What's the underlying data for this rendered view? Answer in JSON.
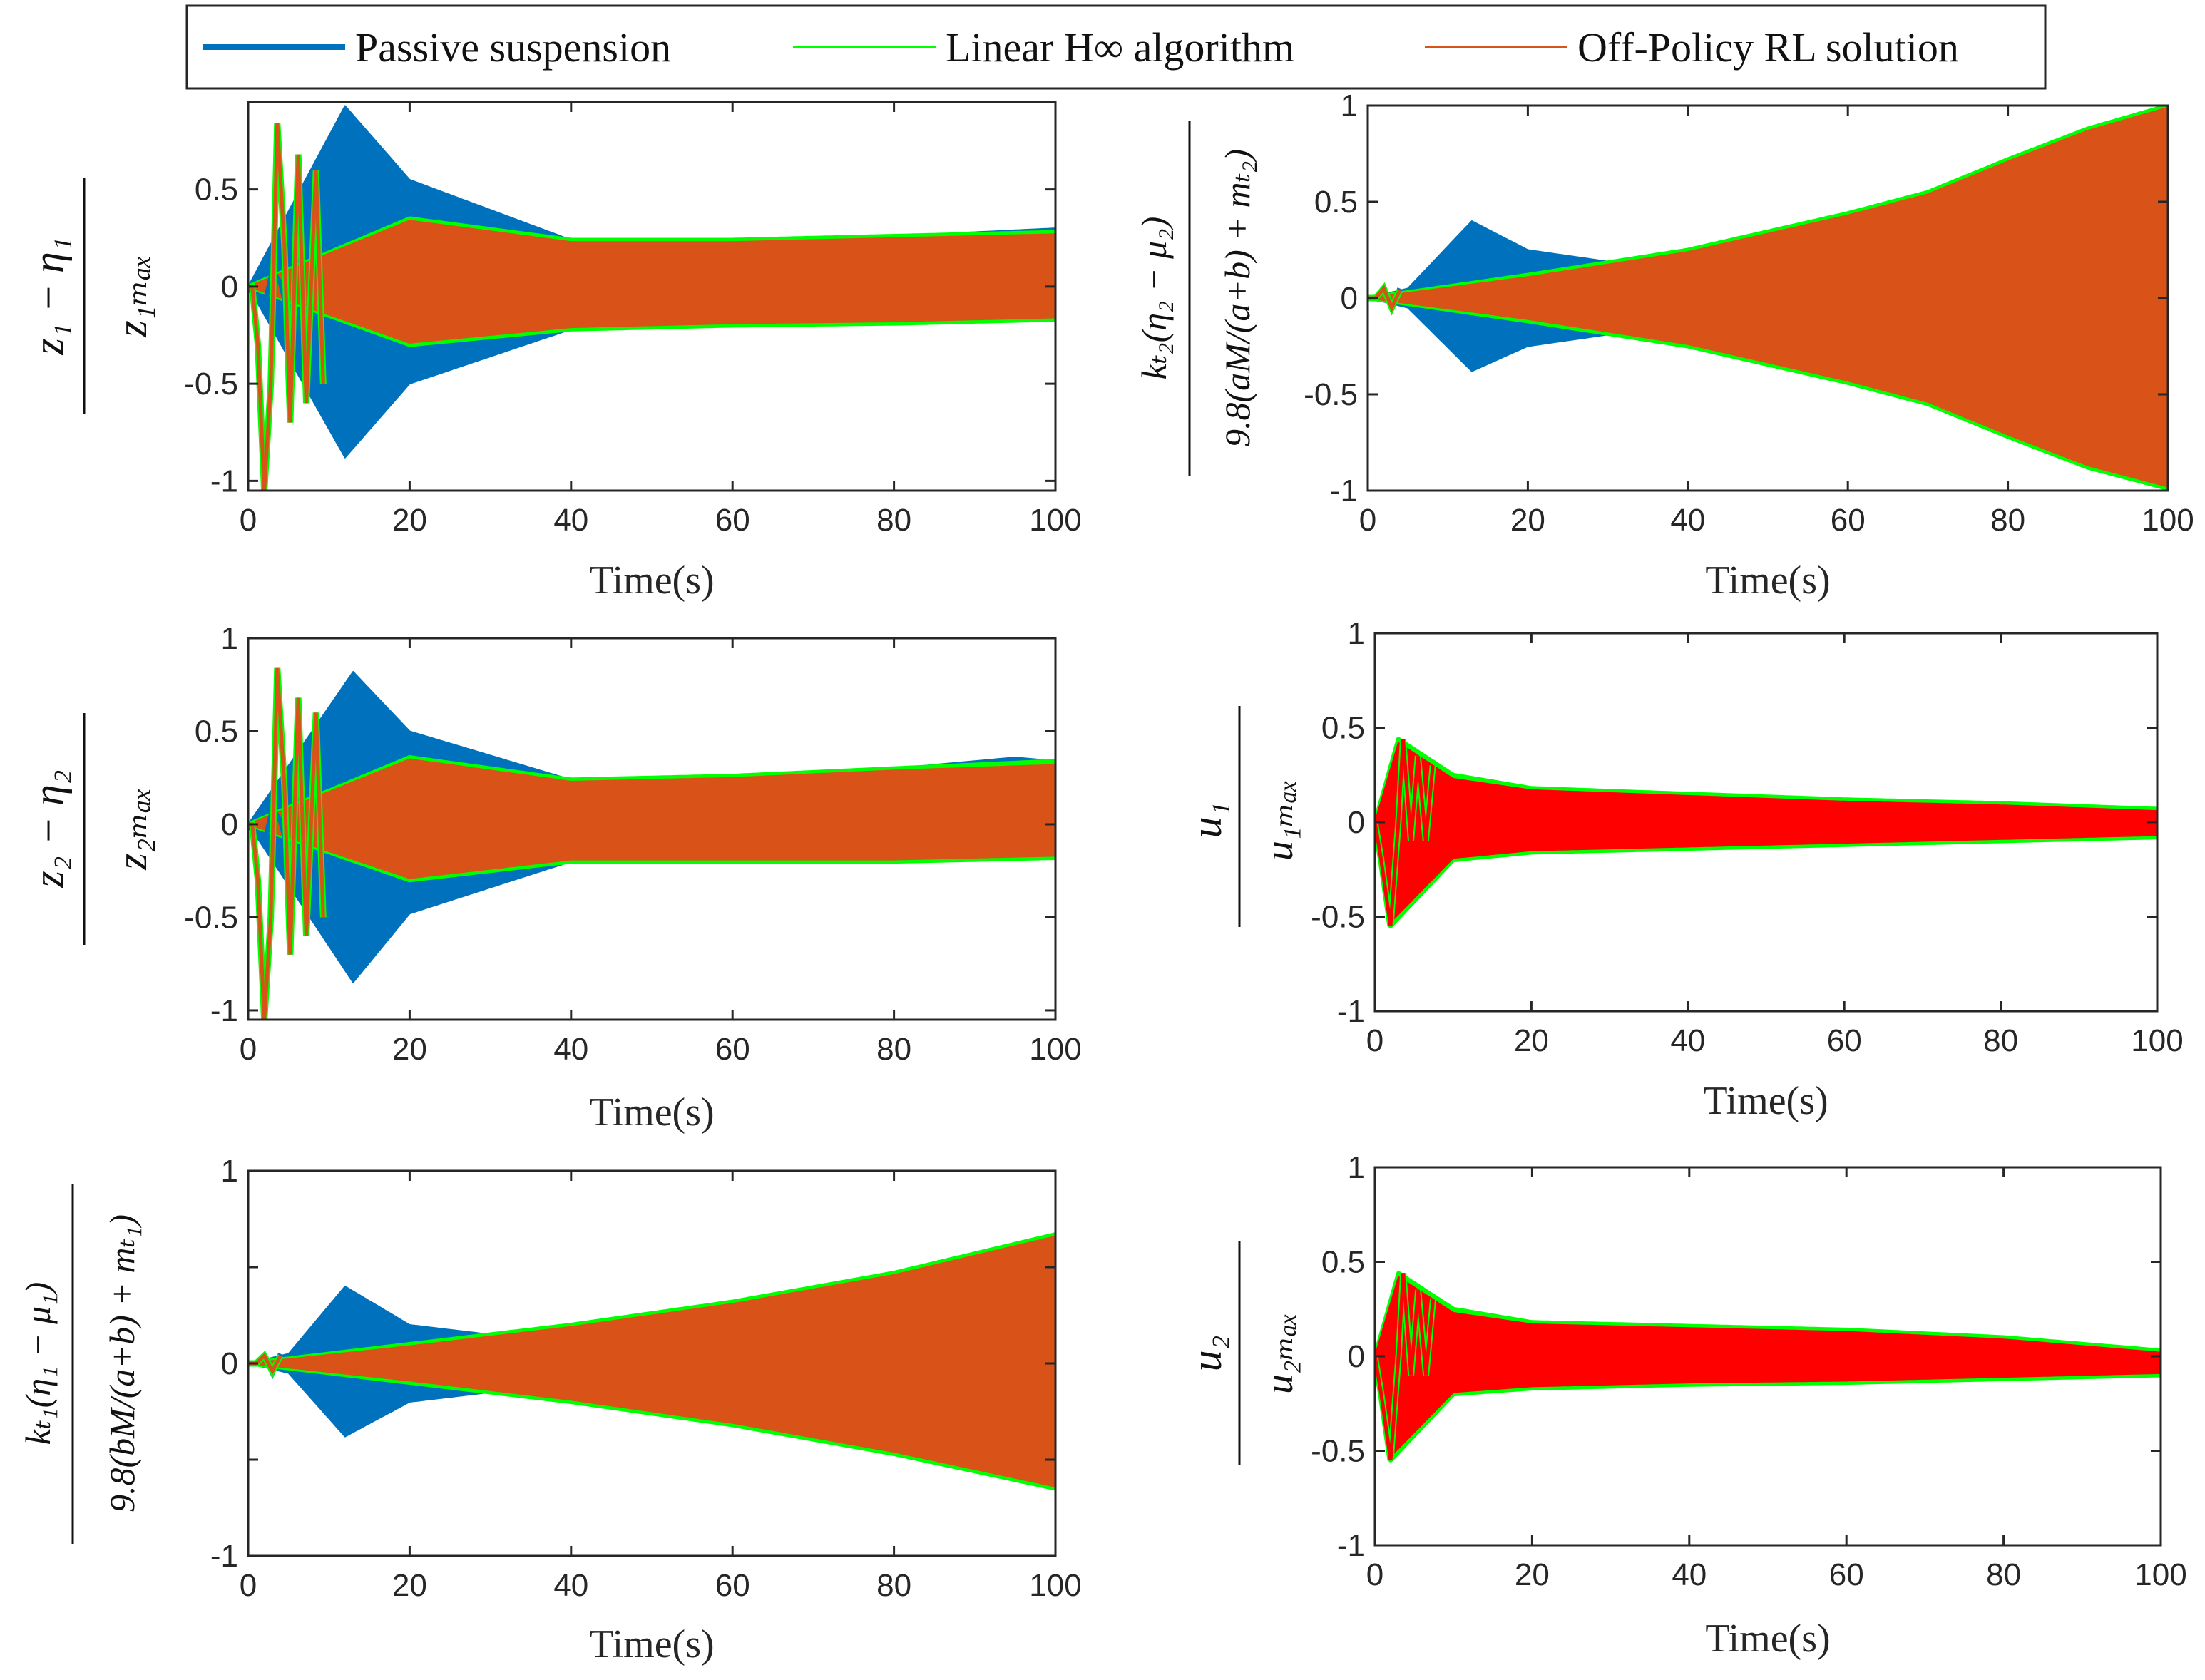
{
  "legend": {
    "entries": [
      {
        "label": "Passive suspension",
        "color": "#0072BD"
      },
      {
        "label": "Linear H∞ algorithm",
        "color": "#00FF00"
      },
      {
        "label": "Off-Policy RL solution",
        "color": "#D95319"
      }
    ]
  },
  "colors": {
    "passive": "#0072BD",
    "linear": "#00FF00",
    "rl_orange": "#D95319",
    "rl_red": "#FF0000",
    "axis": "#262626"
  },
  "chart_data": [
    {
      "type": "line",
      "panel": "top-left",
      "xlabel": "Time(s)",
      "ylabel": "(z1 - η1) / z1max",
      "ylabel_num": "z₁ − η₁",
      "ylabel_den": "z₁ₘₐₓ",
      "xlim": [
        0,
        100
      ],
      "ylim": [
        -1.05,
        0.95
      ],
      "xticks": [
        0,
        20,
        40,
        60,
        80,
        100
      ],
      "yticks": [
        -1,
        -0.5,
        0,
        0.5
      ],
      "ytick_labels": [
        "-1",
        "-0.5",
        "0",
        "0.5"
      ],
      "rl_color": "#D95319",
      "series": [
        {
          "name": "Passive suspension",
          "upper_x": [
            0,
            12,
            20,
            40,
            60,
            80,
            100
          ],
          "upper_y": [
            0,
            0.93,
            0.55,
            0.24,
            0.24,
            0.26,
            0.3
          ],
          "lower_x": [
            0,
            12,
            20,
            40,
            60,
            80,
            100
          ],
          "lower_y": [
            0,
            -0.88,
            -0.5,
            -0.22,
            -0.2,
            -0.19,
            -0.17
          ]
        },
        {
          "name": "Linear H∞ algorithm",
          "upper_x": [
            0,
            20,
            40,
            60,
            80,
            100
          ],
          "upper_y": [
            0,
            0.35,
            0.24,
            0.24,
            0.26,
            0.28
          ],
          "lower_x": [
            0,
            20,
            40,
            60,
            80,
            100
          ],
          "lower_y": [
            0,
            -0.3,
            -0.22,
            -0.2,
            -0.19,
            -0.17
          ]
        },
        {
          "name": "Off-Policy RL solution",
          "upper_x": [
            0,
            20,
            40,
            60,
            80,
            100
          ],
          "upper_y": [
            0,
            0.34,
            0.23,
            0.23,
            0.25,
            0.27
          ],
          "lower_x": [
            0,
            20,
            40,
            60,
            80,
            100
          ],
          "lower_y": [
            0,
            -0.29,
            -0.21,
            -0.19,
            -0.18,
            -0.16
          ]
        }
      ],
      "transient": [
        [
          0,
          0
        ],
        [
          0.5,
          0
        ],
        [
          1.2,
          -0.3
        ],
        [
          2,
          -1.05
        ],
        [
          2.8,
          -0.5
        ],
        [
          3.6,
          0.84
        ],
        [
          4.5,
          0.2
        ],
        [
          5.2,
          -0.7
        ],
        [
          6.2,
          0.68
        ],
        [
          7.2,
          -0.6
        ],
        [
          8.4,
          0.6
        ],
        [
          9.3,
          -0.5
        ]
      ],
      "passive_transient": [
        [
          0,
          0
        ],
        [
          1,
          -0.06
        ],
        [
          2,
          -0.1
        ],
        [
          3,
          0.08
        ],
        [
          4,
          0.02
        ],
        [
          5,
          -0.15
        ]
      ]
    },
    {
      "type": "line",
      "panel": "top-right",
      "xlabel": "Time(s)",
      "ylabel": "k_t2(η2 − μ2) / 9.8(aM/(a+b) + m_t2)",
      "ylabel_num": "kₜ₂(η₂ − μ₂)",
      "ylabel_den": "9.8(aM/(a+b) + mₜ₂)",
      "xlim": [
        0,
        100
      ],
      "ylim": [
        -1,
        1
      ],
      "xticks": [
        0,
        20,
        40,
        60,
        80,
        100
      ],
      "yticks": [
        -1,
        -0.5,
        0,
        0.5,
        1
      ],
      "ytick_labels": [
        "-1",
        "-0.5",
        "0",
        "0.5",
        "1"
      ],
      "rl_color": "#D95319",
      "series": [
        {
          "name": "Passive suspension",
          "upper_x": [
            0,
            5,
            13,
            20,
            30,
            40
          ],
          "upper_y": [
            0,
            0.05,
            0.4,
            0.25,
            0.19,
            0.21
          ],
          "lower_x": [
            0,
            5,
            13,
            20,
            30,
            40
          ],
          "lower_y": [
            0,
            -0.05,
            -0.38,
            -0.25,
            -0.19,
            -0.21
          ]
        },
        {
          "name": "Linear H∞ algorithm",
          "upper_x": [
            0,
            20,
            40,
            60,
            70,
            80,
            90,
            100
          ],
          "upper_y": [
            0,
            0.12,
            0.25,
            0.44,
            0.55,
            0.72,
            0.88,
            1.0
          ],
          "lower_x": [
            0,
            20,
            40,
            60,
            70,
            80,
            90,
            100
          ],
          "lower_y": [
            0,
            -0.12,
            -0.25,
            -0.44,
            -0.55,
            -0.72,
            -0.88,
            -0.99
          ]
        },
        {
          "name": "Off-Policy RL solution",
          "upper_x": [
            0,
            20,
            40,
            60,
            70,
            80,
            90,
            100
          ],
          "upper_y": [
            0,
            0.11,
            0.24,
            0.43,
            0.54,
            0.71,
            0.87,
            0.99
          ],
          "lower_x": [
            0,
            20,
            40,
            60,
            70,
            80,
            90,
            100
          ],
          "lower_y": [
            0,
            -0.11,
            -0.24,
            -0.43,
            -0.54,
            -0.71,
            -0.87,
            -0.98
          ]
        }
      ],
      "transient": [
        [
          0,
          0
        ],
        [
          1,
          0
        ],
        [
          2,
          0.05
        ],
        [
          3,
          -0.05
        ],
        [
          4,
          0.04
        ]
      ],
      "passive_transient": [
        [
          0,
          0
        ],
        [
          1,
          0
        ],
        [
          2,
          0.04
        ],
        [
          3,
          -0.05
        ],
        [
          4,
          0.05
        ]
      ]
    },
    {
      "type": "line",
      "panel": "middle-left",
      "xlabel": "Time(s)",
      "ylabel": "(z2 - η2) / z2max",
      "ylabel_num": "z₂ − η₂",
      "ylabel_den": "z₂ₘₐₓ",
      "xlim": [
        0,
        100
      ],
      "ylim": [
        -1.05,
        1
      ],
      "xticks": [
        0,
        20,
        40,
        60,
        80,
        100
      ],
      "yticks": [
        -1,
        -0.5,
        0,
        0.5,
        1
      ],
      "ytick_labels": [
        "-1",
        "-0.5",
        "0",
        "0.5",
        "1"
      ],
      "rl_color": "#D95319",
      "series": [
        {
          "name": "Passive suspension",
          "upper_x": [
            0,
            13,
            20,
            40,
            60,
            80,
            95,
            100
          ],
          "upper_y": [
            0,
            0.82,
            0.5,
            0.24,
            0.26,
            0.3,
            0.36,
            0.34
          ],
          "lower_x": [
            0,
            13,
            20,
            40,
            60,
            80,
            100
          ],
          "lower_y": [
            0,
            -0.85,
            -0.48,
            -0.2,
            -0.2,
            -0.2,
            -0.18
          ]
        },
        {
          "name": "Linear H∞ algorithm",
          "upper_x": [
            0,
            20,
            40,
            60,
            80,
            100
          ],
          "upper_y": [
            0,
            0.36,
            0.24,
            0.26,
            0.3,
            0.34
          ],
          "lower_x": [
            0,
            20,
            40,
            60,
            80,
            100
          ],
          "lower_y": [
            0,
            -0.3,
            -0.2,
            -0.2,
            -0.2,
            -0.18
          ]
        },
        {
          "name": "Off-Policy RL solution",
          "upper_x": [
            0,
            20,
            40,
            60,
            80,
            100
          ],
          "upper_y": [
            0,
            0.35,
            0.23,
            0.25,
            0.29,
            0.32
          ],
          "lower_x": [
            0,
            20,
            40,
            60,
            80,
            100
          ],
          "lower_y": [
            0,
            -0.29,
            -0.19,
            -0.19,
            -0.19,
            -0.17
          ]
        }
      ],
      "transient": [
        [
          0,
          0
        ],
        [
          0.5,
          0
        ],
        [
          1.2,
          -0.3
        ],
        [
          2,
          -1.05
        ],
        [
          2.8,
          -0.5
        ],
        [
          3.6,
          0.84
        ],
        [
          4.5,
          0.2
        ],
        [
          5.2,
          -0.7
        ],
        [
          6.2,
          0.68
        ],
        [
          7.2,
          -0.6
        ],
        [
          8.4,
          0.6
        ],
        [
          9.3,
          -0.5
        ]
      ],
      "passive_transient": [
        [
          0,
          0
        ],
        [
          1,
          -0.06
        ],
        [
          2,
          -0.1
        ],
        [
          3,
          0.08
        ],
        [
          4,
          0.02
        ],
        [
          5,
          -0.15
        ]
      ]
    },
    {
      "type": "line",
      "panel": "middle-right",
      "xlabel": "Time(s)",
      "ylabel": "u1 / u1max",
      "ylabel_num": "u₁",
      "ylabel_den": "u₁ₘₐₓ",
      "xlim": [
        0,
        100
      ],
      "ylim": [
        -1,
        1
      ],
      "xticks": [
        0,
        20,
        40,
        60,
        80,
        100
      ],
      "yticks": [
        -1,
        -0.5,
        0,
        0.5,
        1
      ],
      "ytick_labels": [
        "-1",
        "-0.5",
        "0",
        "0.5",
        "1"
      ],
      "rl_color": "#FF0000",
      "series": [
        {
          "name": "Linear H∞ algorithm",
          "upper_x": [
            0,
            3,
            10,
            20,
            40,
            60,
            80,
            100
          ],
          "upper_y": [
            0,
            0.44,
            0.25,
            0.18,
            0.15,
            0.12,
            0.1,
            0.07
          ],
          "lower_x": [
            0,
            2,
            10,
            20,
            40,
            60,
            80,
            100
          ],
          "lower_y": [
            0,
            -0.55,
            -0.2,
            -0.16,
            -0.14,
            -0.12,
            -0.1,
            -0.08
          ]
        },
        {
          "name": "Off-Policy RL solution",
          "upper_x": [
            0,
            3,
            10,
            20,
            40,
            60,
            80,
            100
          ],
          "upper_y": [
            0,
            0.42,
            0.23,
            0.17,
            0.14,
            0.11,
            0.09,
            0.06
          ],
          "lower_x": [
            0,
            2,
            10,
            20,
            40,
            60,
            80,
            100
          ],
          "lower_y": [
            0,
            -0.53,
            -0.19,
            -0.15,
            -0.13,
            -0.11,
            -0.09,
            -0.07
          ]
        }
      ],
      "transient": [
        [
          0,
          0
        ],
        [
          0.8,
          -0.2
        ],
        [
          2,
          -0.55
        ],
        [
          3,
          0.0
        ],
        [
          3.6,
          0.44
        ],
        [
          4.6,
          -0.1
        ],
        [
          5.5,
          0.35
        ],
        [
          6.5,
          -0.1
        ],
        [
          7.4,
          0.3
        ]
      ]
    },
    {
      "type": "line",
      "panel": "bottom-left",
      "xlabel": "Time(s)",
      "ylabel": "k_t1(η1 − μ1) / 9.8(bM/(a+b) + m_t1)",
      "ylabel_num": "kₜ₁(η₁ − μ₁)",
      "ylabel_den": "9.8(bM/(a+b) + mₜ₁)",
      "xlim": [
        0,
        100
      ],
      "ylim": [
        -1,
        1
      ],
      "xticks": [
        0,
        20,
        40,
        60,
        80,
        100
      ],
      "yticks": [
        -1,
        -0.5,
        0,
        0.5,
        1
      ],
      "ytick_labels": [
        "-1",
        "",
        "0",
        "",
        "1"
      ],
      "rl_color": "#D95319",
      "series": [
        {
          "name": "Passive suspension",
          "upper_x": [
            0,
            5,
            12,
            20,
            30,
            40
          ],
          "upper_y": [
            0,
            0.05,
            0.4,
            0.2,
            0.15,
            0.17
          ],
          "lower_x": [
            0,
            5,
            12,
            20,
            30,
            40
          ],
          "lower_y": [
            0,
            -0.05,
            -0.38,
            -0.2,
            -0.15,
            -0.17
          ]
        },
        {
          "name": "Linear H∞ algorithm",
          "upper_x": [
            0,
            20,
            40,
            60,
            80,
            100
          ],
          "upper_y": [
            0,
            0.1,
            0.2,
            0.32,
            0.47,
            0.67
          ],
          "lower_x": [
            0,
            20,
            40,
            60,
            80,
            100
          ],
          "lower_y": [
            0,
            -0.1,
            -0.2,
            -0.32,
            -0.47,
            -0.65
          ]
        },
        {
          "name": "Off-Policy RL solution",
          "upper_x": [
            0,
            20,
            40,
            60,
            80,
            100
          ],
          "upper_y": [
            0,
            0.09,
            0.19,
            0.31,
            0.46,
            0.66
          ],
          "lower_x": [
            0,
            20,
            40,
            60,
            80,
            100
          ],
          "lower_y": [
            0,
            -0.09,
            -0.19,
            -0.31,
            -0.46,
            -0.64
          ]
        }
      ],
      "transient": [
        [
          0,
          0
        ],
        [
          1,
          0
        ],
        [
          2,
          0.04
        ],
        [
          3,
          -0.04
        ],
        [
          4,
          0.04
        ]
      ],
      "passive_transient": [
        [
          0,
          0
        ],
        [
          1,
          0
        ],
        [
          2,
          0.04
        ],
        [
          3,
          -0.05
        ],
        [
          4,
          0.05
        ]
      ]
    },
    {
      "type": "line",
      "panel": "bottom-right",
      "xlabel": "Time(s)",
      "ylabel": "u2 / u2max",
      "ylabel_num": "u₂",
      "ylabel_den": "u₂ₘₐₓ",
      "xlim": [
        0,
        100
      ],
      "ylim": [
        -1,
        1
      ],
      "xticks": [
        0,
        20,
        40,
        60,
        80,
        100
      ],
      "yticks": [
        -1,
        -0.5,
        0,
        0.5,
        1
      ],
      "ytick_labels": [
        "-1",
        "-0.5",
        "0",
        "0.5",
        "1"
      ],
      "rl_color": "#FF0000",
      "series": [
        {
          "name": "Linear H∞ algorithm",
          "upper_x": [
            0,
            3,
            10,
            20,
            40,
            60,
            80,
            100
          ],
          "upper_y": [
            0,
            0.44,
            0.25,
            0.18,
            0.16,
            0.14,
            0.1,
            0.03
          ],
          "lower_x": [
            0,
            2,
            10,
            20,
            40,
            60,
            80,
            100
          ],
          "lower_y": [
            0,
            -0.55,
            -0.2,
            -0.17,
            -0.15,
            -0.14,
            -0.12,
            -0.1
          ]
        },
        {
          "name": "Off-Policy RL solution",
          "upper_x": [
            0,
            3,
            10,
            20,
            40,
            60,
            80,
            100
          ],
          "upper_y": [
            0,
            0.42,
            0.23,
            0.17,
            0.15,
            0.13,
            0.09,
            0.02
          ],
          "lower_x": [
            0,
            2,
            10,
            20,
            40,
            60,
            80,
            100
          ],
          "lower_y": [
            0,
            -0.53,
            -0.19,
            -0.16,
            -0.14,
            -0.13,
            -0.11,
            -0.09
          ]
        }
      ],
      "transient": [
        [
          0,
          0
        ],
        [
          0.8,
          -0.2
        ],
        [
          2,
          -0.55
        ],
        [
          3,
          0.0
        ],
        [
          3.6,
          0.44
        ],
        [
          4.6,
          -0.1
        ],
        [
          5.5,
          0.35
        ],
        [
          6.5,
          -0.1
        ],
        [
          7.4,
          0.3
        ]
      ]
    }
  ]
}
